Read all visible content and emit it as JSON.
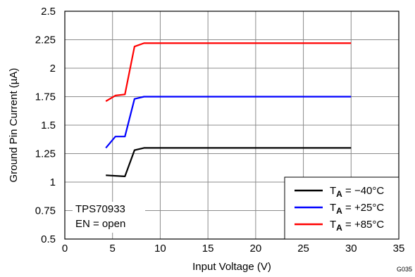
{
  "chart_data": {
    "type": "line",
    "title": "",
    "xlabel": "Input Voltage (V)",
    "ylabel": "Ground Pin Current (µA)",
    "xlim": [
      0,
      35
    ],
    "ylim": [
      0.5,
      2.5
    ],
    "x_ticks": [
      0,
      5,
      10,
      15,
      20,
      25,
      30,
      35
    ],
    "x_tick_labels": [
      "0",
      "5",
      "10",
      "15",
      "20",
      "25",
      "30",
      "35"
    ],
    "y_ticks": [
      0.5,
      0.75,
      1,
      1.25,
      1.5,
      1.75,
      2,
      2.25,
      2.5
    ],
    "y_tick_labels": [
      "0.5",
      "0.75",
      "1",
      "1.25",
      "1.5",
      "1.75",
      "2",
      "2.25",
      "2.5"
    ],
    "grid": true,
    "legend_position": "bottom-right",
    "series": [
      {
        "name_prefix": "T",
        "name_sub": "A",
        "name_suffix": " = −40°C",
        "color": "#000000",
        "x": [
          4.3,
          6.3,
          7.3,
          8.3,
          10,
          12,
          14,
          16,
          18,
          20,
          22,
          24,
          26,
          28,
          30
        ],
        "y": [
          1.06,
          1.05,
          1.28,
          1.3,
          1.3,
          1.3,
          1.3,
          1.3,
          1.3,
          1.3,
          1.3,
          1.3,
          1.3,
          1.3,
          1.3
        ]
      },
      {
        "name_prefix": "T",
        "name_sub": "A",
        "name_suffix": " = +25°C",
        "color": "#0000ff",
        "x": [
          4.3,
          5.3,
          6.3,
          7.3,
          8.3,
          10,
          12,
          14,
          16,
          18,
          20,
          22,
          24,
          26,
          28,
          30
        ],
        "y": [
          1.3,
          1.4,
          1.4,
          1.73,
          1.75,
          1.75,
          1.75,
          1.75,
          1.75,
          1.75,
          1.75,
          1.75,
          1.75,
          1.75,
          1.75,
          1.75
        ]
      },
      {
        "name_prefix": "T",
        "name_sub": "A",
        "name_suffix": " = +85°C",
        "color": "#ff0000",
        "x": [
          4.3,
          5.3,
          6.3,
          7.3,
          8.3,
          10,
          12,
          14,
          16,
          18,
          20,
          22,
          24,
          26,
          28,
          30
        ],
        "y": [
          1.71,
          1.76,
          1.77,
          2.19,
          2.22,
          2.22,
          2.22,
          2.22,
          2.22,
          2.22,
          2.22,
          2.22,
          2.22,
          2.22,
          2.22,
          2.22
        ]
      }
    ],
    "annotation": {
      "line1": "TPS70933",
      "line2": "EN = open"
    },
    "figure_id": "G035"
  }
}
